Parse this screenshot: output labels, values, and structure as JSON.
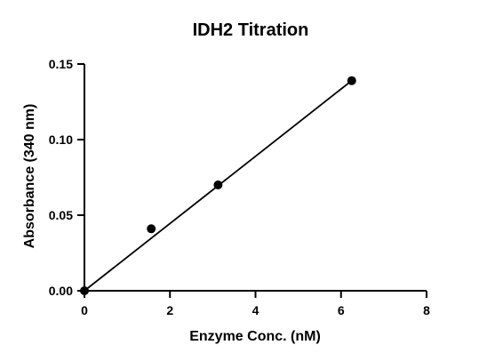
{
  "chart_data": {
    "type": "scatter",
    "title": "IDH2 Titration",
    "xlabel": "Enzyme Conc. (nM)",
    "ylabel": "Absorbance (340 nm)",
    "xlim": [
      0,
      8
    ],
    "ylim": [
      0,
      0.15
    ],
    "xticks": [
      0,
      2,
      4,
      6,
      8
    ],
    "xtick_labels": [
      "0",
      "2",
      "4",
      "6",
      "8"
    ],
    "yticks": [
      0,
      0.05,
      0.1,
      0.15
    ],
    "ytick_labels": [
      "0.00",
      "0.05",
      "0.10",
      "0.15"
    ],
    "grid": false,
    "series": [
      {
        "points": [
          {
            "x": 0,
            "y": 0.0
          },
          {
            "x": 1.5625,
            "y": 0.041
          },
          {
            "x": 3.125,
            "y": 0.07
          },
          {
            "x": 6.25,
            "y": 0.139
          }
        ],
        "fit_line": {
          "x": [
            0,
            6.25
          ],
          "y": [
            0.0,
            0.139
          ]
        },
        "color": "#000000"
      }
    ]
  }
}
